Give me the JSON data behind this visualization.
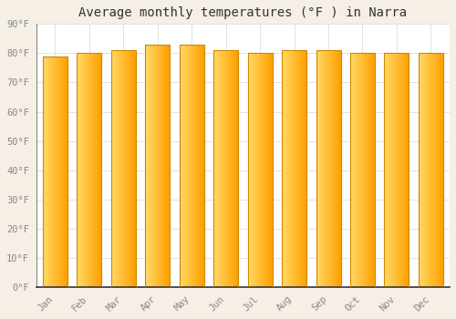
{
  "title": "Average monthly temperatures (°F ) in Narra",
  "months": [
    "Jan",
    "Feb",
    "Mar",
    "Apr",
    "May",
    "Jun",
    "Jul",
    "Aug",
    "Sep",
    "Oct",
    "Nov",
    "Dec"
  ],
  "values": [
    79,
    80,
    81,
    83,
    83,
    81,
    80,
    81,
    81,
    80,
    80,
    80
  ],
  "bar_color_left": "#FFD966",
  "bar_color_right": "#FFA500",
  "bar_edge_color": "#CC8800",
  "background_color": "#FFFFFF",
  "outer_background": "#F5EFE6",
  "grid_color": "#DDDDDD",
  "ylim": [
    0,
    90
  ],
  "ytick_interval": 10,
  "title_fontsize": 10,
  "tick_fontsize": 7.5,
  "font_family": "monospace"
}
